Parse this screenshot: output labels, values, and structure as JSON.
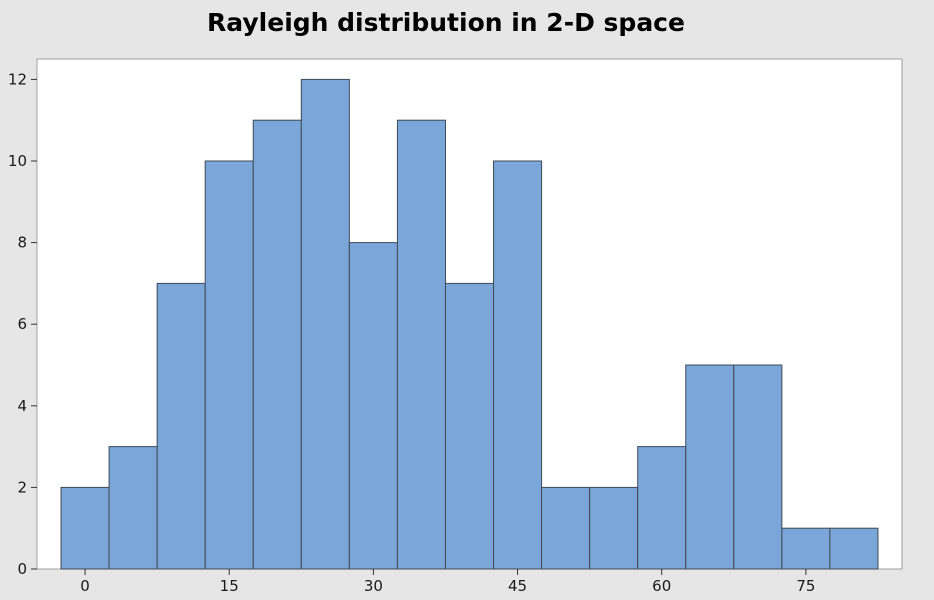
{
  "chart_data": {
    "type": "bar",
    "title": "Rayleigh distribution in 2-D space",
    "xlabel": "",
    "ylabel": "",
    "bin_width": 5,
    "bins": [
      {
        "start": -2.5,
        "end": 2.5,
        "count": 2
      },
      {
        "start": 2.5,
        "end": 7.5,
        "count": 3
      },
      {
        "start": 7.5,
        "end": 12.5,
        "count": 7
      },
      {
        "start": 12.5,
        "end": 17.5,
        "count": 10
      },
      {
        "start": 17.5,
        "end": 22.5,
        "count": 11
      },
      {
        "start": 22.5,
        "end": 27.5,
        "count": 12
      },
      {
        "start": 27.5,
        "end": 32.5,
        "count": 8
      },
      {
        "start": 32.5,
        "end": 37.5,
        "count": 11
      },
      {
        "start": 37.5,
        "end": 42.5,
        "count": 7
      },
      {
        "start": 42.5,
        "end": 47.5,
        "count": 10
      },
      {
        "start": 47.5,
        "end": 52.5,
        "count": 2
      },
      {
        "start": 52.5,
        "end": 57.5,
        "count": 2
      },
      {
        "start": 57.5,
        "end": 62.5,
        "count": 3
      },
      {
        "start": 62.5,
        "end": 67.5,
        "count": 5
      },
      {
        "start": 67.5,
        "end": 72.5,
        "count": 5
      },
      {
        "start": 72.5,
        "end": 77.5,
        "count": 1
      },
      {
        "start": 77.5,
        "end": 82.5,
        "count": 1
      }
    ],
    "xlim": [
      -5,
      85
    ],
    "ylim": [
      0,
      12.5
    ],
    "x_ticks": [
      0,
      15,
      30,
      45,
      60,
      75
    ],
    "y_ticks": [
      0,
      2,
      4,
      6,
      8,
      10,
      12
    ],
    "grid": false,
    "colors": {
      "bar_fill": "#7ba6d9",
      "bar_stroke": "#3f4a55",
      "plot_background": "#ffffff",
      "figure_background": "#e6e6e6"
    }
  }
}
